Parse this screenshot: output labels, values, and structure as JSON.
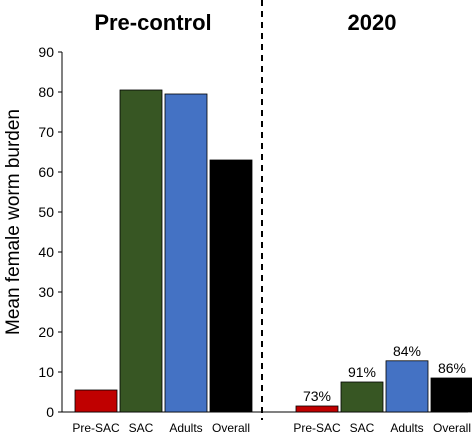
{
  "chart_data": {
    "type": "bar",
    "ylabel": "Mean female worm burden",
    "ylim": [
      0,
      90
    ],
    "yticks": [
      "0",
      "10",
      "20",
      "30",
      "40",
      "50",
      "60",
      "70",
      "80",
      "90"
    ],
    "grid": false,
    "panels": [
      {
        "title": "Pre-control",
        "categories": [
          "Pre-SAC",
          "SAC",
          "Adults",
          "Overall"
        ],
        "values": [
          5.5,
          80.5,
          79.5,
          63
        ],
        "data_labels": [
          "",
          "",
          "",
          ""
        ]
      },
      {
        "title": "2020",
        "categories": [
          "Pre-SAC",
          "SAC",
          "Adults",
          "Overall"
        ],
        "values": [
          1.5,
          7.5,
          12.8,
          8.5
        ],
        "data_labels": [
          "73%",
          "91%",
          "84%",
          "86%"
        ]
      }
    ],
    "colors": [
      "#c00000",
      "#375623",
      "#4472c4",
      "#000000"
    ]
  }
}
